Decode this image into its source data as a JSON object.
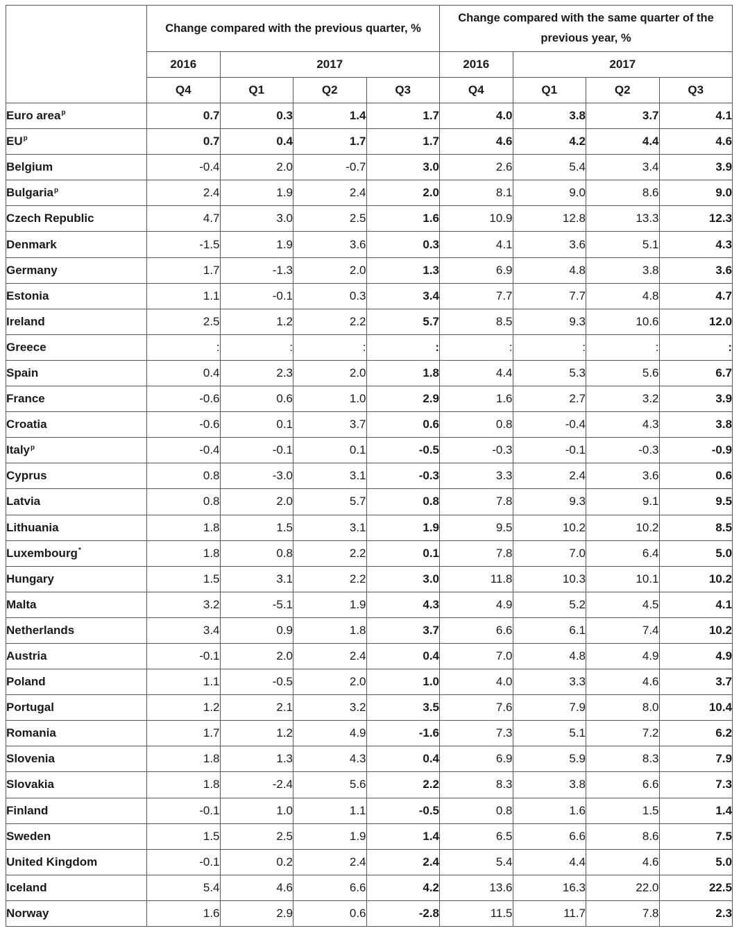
{
  "header": {
    "group1": "Change compared with the previous quarter, %",
    "group2": "Change compared with the same quarter of the previous year, %",
    "years": [
      "2016",
      "2017",
      "2016",
      "2017"
    ],
    "quarters": [
      "Q4",
      "Q1",
      "Q2",
      "Q3",
      "Q4",
      "Q1",
      "Q2",
      "Q3"
    ]
  },
  "rows": [
    {
      "country": "Euro area",
      "sup": "p",
      "values": [
        "0.7",
        "0.3",
        "1.4",
        "1.7",
        "4.0",
        "3.8",
        "3.7",
        "4.1"
      ],
      "bold": true
    },
    {
      "country": "EU",
      "sup": "p",
      "values": [
        "0.7",
        "0.4",
        "1.7",
        "1.7",
        "4.6",
        "4.2",
        "4.4",
        "4.6"
      ],
      "bold": true
    },
    {
      "country": "Belgium",
      "sup": "",
      "values": [
        "-0.4",
        "2.0",
        "-0.7",
        "3.0",
        "2.6",
        "5.4",
        "3.4",
        "3.9"
      ],
      "bold": false
    },
    {
      "country": "Bulgaria",
      "sup": "p",
      "values": [
        "2.4",
        "1.9",
        "2.4",
        "2.0",
        "8.1",
        "9.0",
        "8.6",
        "9.0"
      ],
      "bold": false
    },
    {
      "country": "Czech Republic",
      "sup": "",
      "values": [
        "4.7",
        "3.0",
        "2.5",
        "1.6",
        "10.9",
        "12.8",
        "13.3",
        "12.3"
      ],
      "bold": false
    },
    {
      "country": "Denmark",
      "sup": "",
      "values": [
        "-1.5",
        "1.9",
        "3.6",
        "0.3",
        "4.1",
        "3.6",
        "5.1",
        "4.3"
      ],
      "bold": false
    },
    {
      "country": "Germany",
      "sup": "",
      "values": [
        "1.7",
        "-1.3",
        "2.0",
        "1.3",
        "6.9",
        "4.8",
        "3.8",
        "3.6"
      ],
      "bold": false
    },
    {
      "country": "Estonia",
      "sup": "",
      "values": [
        "1.1",
        "-0.1",
        "0.3",
        "3.4",
        "7.7",
        "7.7",
        "4.8",
        "4.7"
      ],
      "bold": false
    },
    {
      "country": "Ireland",
      "sup": "",
      "values": [
        "2.5",
        "1.2",
        "2.2",
        "5.7",
        "8.5",
        "9.3",
        "10.6",
        "12.0"
      ],
      "bold": false
    },
    {
      "country": "Greece",
      "sup": "",
      "values": [
        ":",
        ":",
        ":",
        ":",
        ":",
        ":",
        ":",
        ":"
      ],
      "bold": false
    },
    {
      "country": "Spain",
      "sup": "",
      "values": [
        "0.4",
        "2.3",
        "2.0",
        "1.8",
        "4.4",
        "5.3",
        "5.6",
        "6.7"
      ],
      "bold": false
    },
    {
      "country": "France",
      "sup": "",
      "values": [
        "-0.6",
        "0.6",
        "1.0",
        "2.9",
        "1.6",
        "2.7",
        "3.2",
        "3.9"
      ],
      "bold": false
    },
    {
      "country": "Croatia",
      "sup": "",
      "values": [
        "-0.6",
        "0.1",
        "3.7",
        "0.6",
        "0.8",
        "-0.4",
        "4.3",
        "3.8"
      ],
      "bold": false
    },
    {
      "country": "Italy",
      "sup": "p",
      "values": [
        "-0.4",
        "-0.1",
        "0.1",
        "-0.5",
        "-0.3",
        "-0.1",
        "-0.3",
        "-0.9"
      ],
      "bold": false
    },
    {
      "country": "Cyprus",
      "sup": "",
      "values": [
        "0.8",
        "-3.0",
        "3.1",
        "-0.3",
        "3.3",
        "2.4",
        "3.6",
        "0.6"
      ],
      "bold": false
    },
    {
      "country": "Latvia",
      "sup": "",
      "values": [
        "0.8",
        "2.0",
        "5.7",
        "0.8",
        "7.8",
        "9.3",
        "9.1",
        "9.5"
      ],
      "bold": false
    },
    {
      "country": "Lithuania",
      "sup": "",
      "values": [
        "1.8",
        "1.5",
        "3.1",
        "1.9",
        "9.5",
        "10.2",
        "10.2",
        "8.5"
      ],
      "bold": false
    },
    {
      "country": "Luxembourg",
      "sup": "*",
      "values": [
        "1.8",
        "0.8",
        "2.2",
        "0.1",
        "7.8",
        "7.0",
        "6.4",
        "5.0"
      ],
      "bold": false
    },
    {
      "country": "Hungary",
      "sup": "",
      "values": [
        "1.5",
        "3.1",
        "2.2",
        "3.0",
        "11.8",
        "10.3",
        "10.1",
        "10.2"
      ],
      "bold": false
    },
    {
      "country": "Malta",
      "sup": "",
      "values": [
        "3.2",
        "-5.1",
        "1.9",
        "4.3",
        "4.9",
        "5.2",
        "4.5",
        "4.1"
      ],
      "bold": false
    },
    {
      "country": "Netherlands",
      "sup": "",
      "values": [
        "3.4",
        "0.9",
        "1.8",
        "3.7",
        "6.6",
        "6.1",
        "7.4",
        "10.2"
      ],
      "bold": false
    },
    {
      "country": "Austria",
      "sup": "",
      "values": [
        "-0.1",
        "2.0",
        "2.4",
        "0.4",
        "7.0",
        "4.8",
        "4.9",
        "4.9"
      ],
      "bold": false
    },
    {
      "country": "Poland",
      "sup": "",
      "values": [
        "1.1",
        "-0.5",
        "2.0",
        "1.0",
        "4.0",
        "3.3",
        "4.6",
        "3.7"
      ],
      "bold": false
    },
    {
      "country": "Portugal",
      "sup": "",
      "values": [
        "1.2",
        "2.1",
        "3.2",
        "3.5",
        "7.6",
        "7.9",
        "8.0",
        "10.4"
      ],
      "bold": false
    },
    {
      "country": "Romania",
      "sup": "",
      "values": [
        "1.7",
        "1.2",
        "4.9",
        "-1.6",
        "7.3",
        "5.1",
        "7.2",
        "6.2"
      ],
      "bold": false
    },
    {
      "country": "Slovenia",
      "sup": "",
      "values": [
        "1.8",
        "1.3",
        "4.3",
        "0.4",
        "6.9",
        "5.9",
        "8.3",
        "7.9"
      ],
      "bold": false
    },
    {
      "country": "Slovakia",
      "sup": "",
      "values": [
        "1.8",
        "-2.4",
        "5.6",
        "2.2",
        "8.3",
        "3.8",
        "6.6",
        "7.3"
      ],
      "bold": false
    },
    {
      "country": "Finland",
      "sup": "",
      "values": [
        "-0.1",
        "1.0",
        "1.1",
        "-0.5",
        "0.8",
        "1.6",
        "1.5",
        "1.4"
      ],
      "bold": false
    },
    {
      "country": "Sweden",
      "sup": "",
      "values": [
        "1.5",
        "2.5",
        "1.9",
        "1.4",
        "6.5",
        "6.6",
        "8.6",
        "7.5"
      ],
      "bold": false
    },
    {
      "country": "United Kingdom",
      "sup": "",
      "values": [
        "-0.1",
        "0.2",
        "2.4",
        "2.4",
        "5.4",
        "4.4",
        "4.6",
        "5.0"
      ],
      "bold": false
    },
    {
      "country": "Iceland",
      "sup": "",
      "values": [
        "5.4",
        "4.6",
        "6.6",
        "4.2",
        "13.6",
        "16.3",
        "22.0",
        "22.5"
      ],
      "bold": false
    },
    {
      "country": "Norway",
      "sup": "",
      "values": [
        "1.6",
        "2.9",
        "0.6",
        "-2.8",
        "11.5",
        "11.7",
        "7.8",
        "2.3"
      ],
      "bold": false
    }
  ]
}
